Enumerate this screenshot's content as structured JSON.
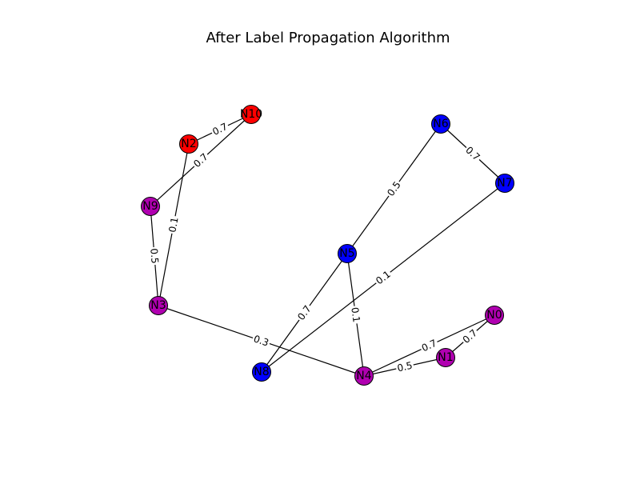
{
  "title": "After Label Propagation Algorithm",
  "colors": {
    "red": "#ff0000",
    "blue": "#0000ff",
    "purple": "#b000b0",
    "edge": "#000000",
    "node_border": "#000000",
    "background": "#ffffff"
  },
  "nodes": [
    {
      "id": "N0",
      "label": "N0",
      "color": "purple"
    },
    {
      "id": "N1",
      "label": "N1",
      "color": "purple"
    },
    {
      "id": "N2",
      "label": "N2",
      "color": "red"
    },
    {
      "id": "N3",
      "label": "N3",
      "color": "purple"
    },
    {
      "id": "N4",
      "label": "N4",
      "color": "purple"
    },
    {
      "id": "N5",
      "label": "N5",
      "color": "blue"
    },
    {
      "id": "N6",
      "label": "N6",
      "color": "blue"
    },
    {
      "id": "N7",
      "label": "N7",
      "color": "blue"
    },
    {
      "id": "N8",
      "label": "N8",
      "color": "blue"
    },
    {
      "id": "N9",
      "label": "N9",
      "color": "purple"
    },
    {
      "id": "N10",
      "label": "N10",
      "color": "red"
    }
  ],
  "edges": [
    {
      "source": "N2",
      "target": "N10",
      "weight": "0.7"
    },
    {
      "source": "N9",
      "target": "N10",
      "weight": "0.7"
    },
    {
      "source": "N2",
      "target": "N3",
      "weight": "0.1"
    },
    {
      "source": "N9",
      "target": "N3",
      "weight": "0.5"
    },
    {
      "source": "N3",
      "target": "N4",
      "weight": "0.3"
    },
    {
      "source": "N6",
      "target": "N5",
      "weight": "0.5"
    },
    {
      "source": "N6",
      "target": "N7",
      "weight": "0.7"
    },
    {
      "source": "N7",
      "target": "N8",
      "weight": "0.1"
    },
    {
      "source": "N5",
      "target": "N8",
      "weight": "0.7"
    },
    {
      "source": "N5",
      "target": "N4",
      "weight": "0.1"
    },
    {
      "source": "N4",
      "target": "N0",
      "weight": "0.7"
    },
    {
      "source": "N4",
      "target": "N1",
      "weight": "0.5"
    },
    {
      "source": "N1",
      "target": "N0",
      "weight": "0.7"
    }
  ]
}
